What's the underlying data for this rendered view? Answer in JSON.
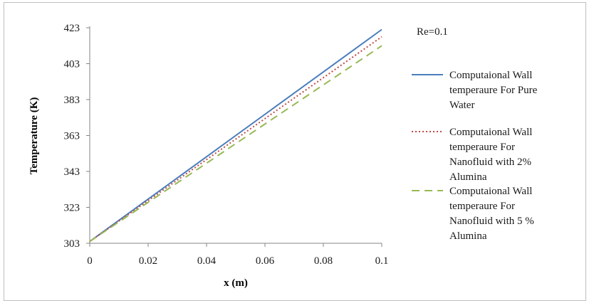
{
  "chart_data": {
    "type": "line",
    "title": "",
    "annotation": "Re=0.1",
    "xlabel": "x (m)",
    "ylabel": "Temperature (K)",
    "xlim": [
      0,
      0.1
    ],
    "ylim": [
      303,
      423
    ],
    "x_ticks": [
      "0",
      "0.02",
      "0.04",
      "0.06",
      "0.08",
      "0.1"
    ],
    "y_ticks": [
      "303",
      "323",
      "343",
      "363",
      "383",
      "403",
      "423"
    ],
    "grid": false,
    "legend_position": "right",
    "series": [
      {
        "name": "Computaional Wall temperaure For Pure Water",
        "legend_lines": [
          "Computaional Wall",
          "temperaure For Pure",
          "Water"
        ],
        "color": "#4a7ebb",
        "dash": "solid",
        "x": [
          0,
          0.1
        ],
        "y": [
          304,
          422
        ]
      },
      {
        "name": "Computaional Wall temperaure For Nanofluid with 2% Alumina",
        "legend_lines": [
          "Computaional Wall",
          "temperaure For",
          "Nanofluid with 2%",
          "Alumina"
        ],
        "color": "#be4b48",
        "dash": "dot",
        "x": [
          0,
          0.1
        ],
        "y": [
          304,
          418
        ]
      },
      {
        "name": "Computaional Wall temperaure For Nanofluid with 5 % Alumina",
        "legend_lines": [
          "Computaional Wall",
          "temperaure For",
          "Nanofluid with 5 %",
          "Alumina"
        ],
        "color": "#98b954",
        "dash": "dash",
        "x": [
          0,
          0.1
        ],
        "y": [
          304,
          413
        ]
      }
    ]
  }
}
